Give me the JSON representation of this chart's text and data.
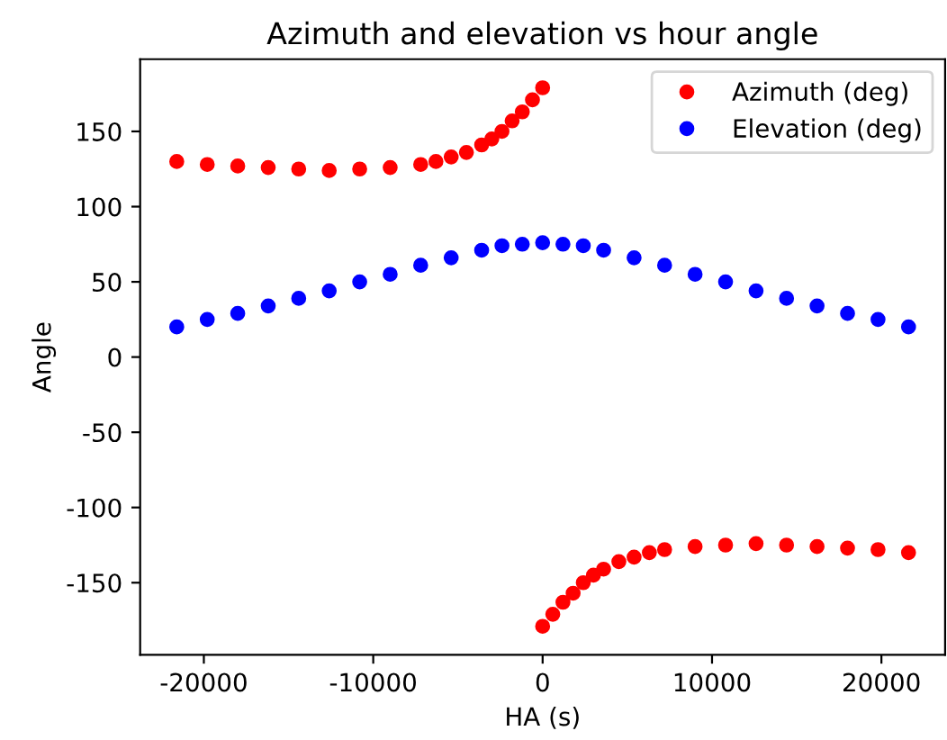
{
  "chart_data": {
    "type": "scatter",
    "title": "Azimuth and elevation vs hour angle",
    "xlabel": "HA (s)",
    "ylabel": "Angle",
    "xlim": [
      -23760,
      23760
    ],
    "ylim": [
      -198,
      198
    ],
    "xticks": [
      -20000,
      -10000,
      0,
      10000,
      20000
    ],
    "yticks": [
      -150,
      -100,
      -50,
      0,
      50,
      100,
      150
    ],
    "legend": "top right",
    "marker": "circle",
    "grid": false,
    "series": [
      {
        "name": "Azimuth (deg)",
        "color": "#ff0000",
        "x": [
          -21600,
          -19800,
          -18000,
          -16200,
          -14400,
          -12600,
          -10800,
          -9000,
          -7200,
          -6300,
          -5400,
          -4500,
          -3600,
          -3000,
          -2400,
          -1800,
          -1200,
          -600,
          0,
          null,
          0,
          600,
          1200,
          1800,
          2400,
          3000,
          3600,
          4500,
          5400,
          6300,
          7200,
          9000,
          10800,
          12600,
          14400,
          16200,
          18000,
          19800,
          21600
        ],
        "values": [
          130,
          128,
          127,
          126,
          125,
          124,
          125,
          126,
          128,
          130,
          133,
          136,
          141,
          145,
          150,
          157,
          163,
          171,
          179,
          null,
          -179,
          -171,
          -163,
          -157,
          -150,
          -145,
          -141,
          -136,
          -133,
          -130,
          -128,
          -126,
          -125,
          -124,
          -125,
          -126,
          -127,
          -128,
          -130
        ]
      },
      {
        "name": "Elevation (deg)",
        "color": "#0000ff",
        "x": [
          -21600,
          -19800,
          -18000,
          -16200,
          -14400,
          -12600,
          -10800,
          -9000,
          -7200,
          -5400,
          -3600,
          -2400,
          -1200,
          0,
          1200,
          2400,
          3600,
          5400,
          7200,
          9000,
          10800,
          12600,
          14400,
          16200,
          18000,
          19800,
          21600
        ],
        "values": [
          20,
          25,
          29,
          34,
          39,
          44,
          50,
          55,
          61,
          66,
          71,
          74,
          75,
          76,
          75,
          74,
          71,
          66,
          61,
          55,
          50,
          44,
          39,
          34,
          29,
          25,
          20
        ]
      }
    ]
  }
}
